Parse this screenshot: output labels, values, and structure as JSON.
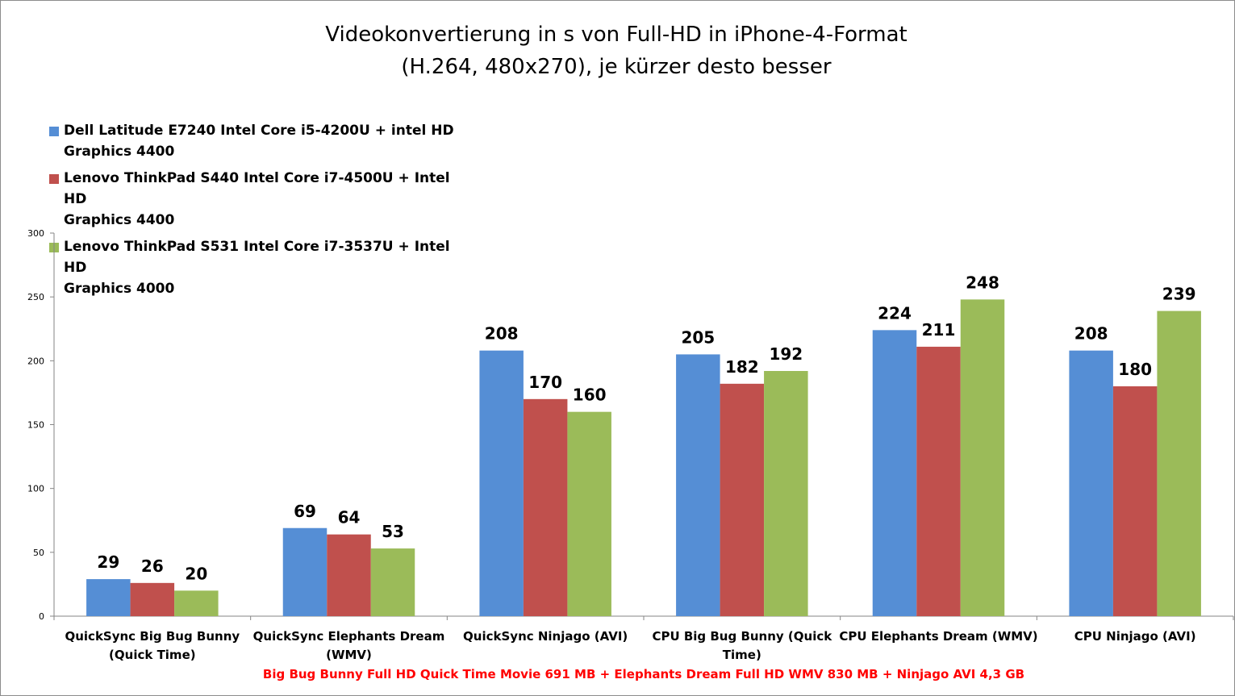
{
  "chart_data": {
    "type": "bar",
    "title_lines": [
      "Videokonvertierung in s von Full-HD in iPhone-4-Format",
      "(H.264, 480x270), je kürzer desto besser"
    ],
    "categories": [
      [
        "QuickSync Big Bug Bunny",
        "(Quick Time)"
      ],
      [
        "QuickSync Elephants Dream",
        "(WMV)"
      ],
      [
        "QuickSync Ninjago (AVI)"
      ],
      [
        "CPU Big Bug Bunny (Quick",
        "Time)"
      ],
      [
        "CPU Elephants Dream (WMV)"
      ],
      [
        "CPU Ninjago (AVI)"
      ]
    ],
    "series": [
      {
        "name_lines": [
          "Dell Latitude  E7240 Intel Core i5-4200U + intel HD",
          "Graphics 4400"
        ],
        "color": "#558ed5",
        "values": [
          29,
          69,
          208,
          205,
          224,
          208
        ]
      },
      {
        "name_lines": [
          "Lenovo ThinkPad  S440 Intel Core i7-4500U + Intel HD",
          "Graphics 4400"
        ],
        "color": "#c0504d",
        "values": [
          26,
          64,
          170,
          182,
          211,
          180
        ]
      },
      {
        "name_lines": [
          "Lenovo ThinkPad  S531 Intel Core i7-3537U + Intel HD",
          "Graphics 4000"
        ],
        "color": "#9bbb59",
        "values": [
          20,
          53,
          160,
          192,
          248,
          239
        ]
      }
    ],
    "ylim": [
      0,
      300
    ],
    "yticks": [
      0,
      50,
      100,
      150,
      200,
      250,
      300
    ],
    "grid": false,
    "legend_position": "top-left",
    "footnote": "Big Bug Bunny Full HD Quick Time Movie 691 MB + Elephants Dream Full HD WMV 830 MB + Ninjago AVI 4,3 GB"
  }
}
